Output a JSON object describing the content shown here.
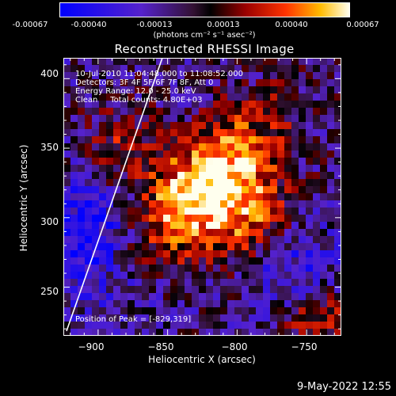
{
  "colorbar": {
    "ticks": [
      "-0.00067",
      "-0.00040",
      "-0.00013",
      "0.00013",
      "0.00040",
      "0.00067"
    ],
    "unit_label": "(photons cm⁻² s⁻¹ asec⁻²)"
  },
  "chart_data": {
    "type": "heatmap",
    "title": "Reconstructed RHESSI Image",
    "xlabel": "Heliocentric X (arcsec)",
    "ylabel": "Heliocentric Y (arcsec)",
    "xlim": [
      -925,
      -725
    ],
    "ylim": [
      215,
      415
    ],
    "x_ticks": [
      "−900",
      "−850",
      "−800",
      "−750"
    ],
    "x_tick_values": [
      -900,
      -850,
      -800,
      -750
    ],
    "y_ticks": [
      "250",
      "300",
      "350",
      "400"
    ],
    "y_tick_values": [
      250,
      300,
      350,
      400
    ],
    "value_range": [
      -0.00067,
      0.00067
    ],
    "peak": {
      "x": -829,
      "y": 319
    },
    "annotations": [
      "10-Jul-2010 11:04:48.000 to 11:08:52.000",
      "Detectors: 3F 4F 5F 6F 7F 8F, Att 0",
      "Energy Range: 12.0 - 25.0 keV",
      "Clean     Total counts: 4.80E+03",
      "Position of Peak = [-829,319]"
    ]
  },
  "colors": {
    "background": "#000000",
    "axes": "#ffffff",
    "limb_line": "#ffffff"
  },
  "footer": {
    "timestamp": "9-May-2022 12:55"
  }
}
